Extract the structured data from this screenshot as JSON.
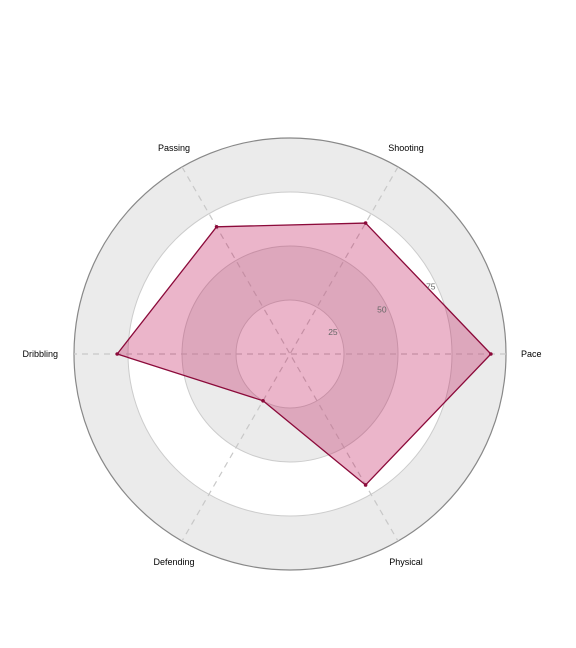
{
  "chart_data": {
    "type": "radar",
    "axes": [
      "Pace",
      "Shooting",
      "Passing",
      "Dribbling",
      "Defending",
      "Physical"
    ],
    "series": [
      {
        "values": [
          93,
          70,
          68,
          80,
          25,
          70
        ]
      }
    ],
    "range": [
      0,
      100
    ],
    "rings": [
      25,
      50,
      75,
      100
    ],
    "tick_labels": [
      "25",
      "50",
      "75"
    ],
    "grid": true,
    "colors": {
      "ring_fill": "#ebebeb",
      "ring_line": "#cccccc",
      "outer_line": "#888888",
      "spoke": "#c8c8c8",
      "series_fill": "#c2185b",
      "series_line": "#8b0a3a",
      "tick_text": "#666666",
      "label_text": "#000000"
    }
  }
}
